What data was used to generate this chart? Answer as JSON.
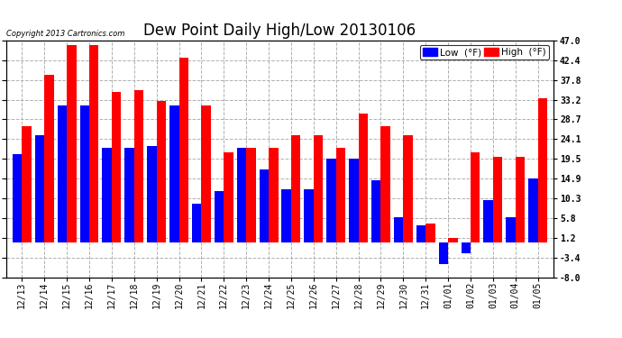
{
  "title": "Dew Point Daily High/Low 20130106",
  "copyright": "Copyright 2013 Cartronics.com",
  "dates": [
    "12/13",
    "12/14",
    "12/15",
    "12/16",
    "12/17",
    "12/18",
    "12/19",
    "12/20",
    "12/21",
    "12/22",
    "12/23",
    "12/24",
    "12/25",
    "12/26",
    "12/27",
    "12/28",
    "12/29",
    "12/30",
    "12/31",
    "01/01",
    "01/02",
    "01/03",
    "01/04",
    "01/05"
  ],
  "high_vals": [
    27.0,
    39.0,
    46.0,
    46.0,
    35.0,
    35.5,
    33.0,
    43.0,
    32.0,
    21.0,
    22.0,
    22.0,
    25.0,
    25.0,
    22.0,
    30.0,
    27.0,
    25.0,
    4.5,
    1.2,
    21.0,
    20.0,
    20.0,
    33.5
  ],
  "low_vals": [
    20.5,
    25.0,
    32.0,
    32.0,
    22.0,
    22.0,
    22.5,
    32.0,
    9.0,
    12.0,
    22.0,
    17.0,
    12.5,
    12.5,
    19.5,
    19.5,
    14.5,
    6.0,
    4.0,
    -5.0,
    -2.5,
    10.0,
    6.0,
    15.0
  ],
  "high_color": "#ff0000",
  "low_color": "#0000ff",
  "bg_color": "#ffffff",
  "plot_bg_color": "#ffffff",
  "grid_color": "#b0b0b0",
  "yticks": [
    -8.0,
    -3.4,
    1.2,
    5.8,
    10.3,
    14.9,
    19.5,
    24.1,
    28.7,
    33.2,
    37.8,
    42.4,
    47.0
  ],
  "ylim": [
    -8.0,
    47.0
  ],
  "bar_width": 0.42,
  "title_fontsize": 12,
  "tick_fontsize": 7,
  "copyright_fontsize": 6,
  "legend_fontsize": 7.5
}
